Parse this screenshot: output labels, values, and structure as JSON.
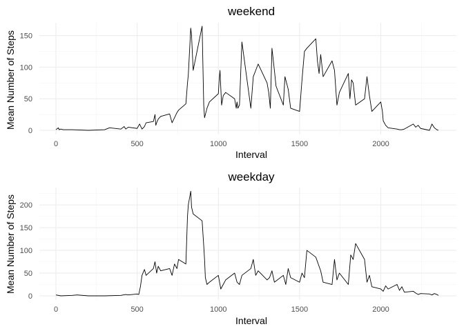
{
  "chart_data": [
    {
      "type": "line",
      "title": "weekend",
      "xlabel": "Interval",
      "ylabel": "Mean Number of Steps",
      "xlim": [
        0,
        2355
      ],
      "ylim": [
        0,
        166
      ],
      "xticks": [
        0,
        500,
        1000,
        1500,
        2000
      ],
      "yticks": [
        0,
        50,
        100,
        150
      ],
      "grid": true,
      "x": [
        0,
        15,
        20,
        30,
        45,
        100,
        200,
        300,
        330,
        400,
        420,
        430,
        445,
        500,
        515,
        530,
        545,
        555,
        600,
        610,
        615,
        620,
        630,
        645,
        700,
        715,
        730,
        745,
        755,
        800,
        810,
        815,
        830,
        835,
        845,
        900,
        910,
        915,
        930,
        945,
        1000,
        1005,
        1010,
        1020,
        1030,
        1045,
        1100,
        1110,
        1115,
        1120,
        1130,
        1145,
        1200,
        1215,
        1230,
        1245,
        1300,
        1310,
        1320,
        1330,
        1345,
        1355,
        1400,
        1410,
        1430,
        1445,
        1500,
        1515,
        1530,
        1545,
        1600,
        1610,
        1620,
        1630,
        1645,
        1700,
        1715,
        1730,
        1745,
        1800,
        1810,
        1820,
        1830,
        1845,
        1900,
        1915,
        1930,
        1945,
        2000,
        2010,
        2015,
        2030,
        2045,
        2100,
        2115,
        2130,
        2145,
        2200,
        2215,
        2230,
        2245,
        2300,
        2315,
        2330,
        2345,
        2355
      ],
      "y": [
        1,
        4,
        1,
        2,
        1,
        1,
        0,
        1,
        4,
        2,
        6,
        2,
        5,
        3,
        10,
        2,
        6,
        12,
        14,
        25,
        8,
        12,
        18,
        22,
        26,
        12,
        20,
        28,
        32,
        42,
        75,
        88,
        162,
        150,
        95,
        165,
        40,
        20,
        35,
        45,
        58,
        80,
        95,
        40,
        55,
        60,
        50,
        35,
        45,
        35,
        40,
        140,
        35,
        85,
        95,
        105,
        75,
        60,
        35,
        130,
        95,
        70,
        40,
        85,
        65,
        35,
        30,
        80,
        125,
        130,
        145,
        110,
        90,
        120,
        85,
        110,
        95,
        40,
        60,
        90,
        50,
        80,
        75,
        40,
        50,
        85,
        55,
        30,
        45,
        30,
        15,
        8,
        4,
        2,
        1,
        1,
        2,
        10,
        5,
        8,
        3,
        0,
        10,
        4,
        1,
        0
      ]
    },
    {
      "type": "line",
      "title": "weekday",
      "xlabel": "Interval",
      "ylabel": "Mean Number of Steps",
      "xlim": [
        0,
        2355
      ],
      "ylim": [
        0,
        232
      ],
      "xticks": [
        0,
        500,
        1000,
        1500,
        2000
      ],
      "yticks": [
        0,
        50,
        100,
        150,
        200
      ],
      "grid": true,
      "x": [
        0,
        30,
        100,
        130,
        200,
        300,
        400,
        430,
        445,
        500,
        510,
        520,
        530,
        545,
        555,
        600,
        610,
        620,
        630,
        645,
        700,
        715,
        730,
        745,
        755,
        800,
        810,
        815,
        830,
        835,
        845,
        900,
        910,
        915,
        920,
        930,
        945,
        1000,
        1015,
        1030,
        1045,
        1100,
        1115,
        1130,
        1145,
        1200,
        1215,
        1230,
        1245,
        1300,
        1315,
        1330,
        1345,
        1400,
        1415,
        1430,
        1445,
        1500,
        1515,
        1530,
        1545,
        1600,
        1615,
        1630,
        1645,
        1700,
        1715,
        1730,
        1745,
        1800,
        1815,
        1830,
        1845,
        1900,
        1915,
        1930,
        1945,
        2000,
        2015,
        2030,
        2045,
        2100,
        2115,
        2130,
        2145,
        2200,
        2215,
        2230,
        2245,
        2300,
        2315,
        2330,
        2345,
        2355
      ],
      "y": [
        2,
        0,
        1,
        2,
        0,
        0,
        1,
        3,
        2,
        4,
        3,
        20,
        45,
        58,
        45,
        60,
        75,
        50,
        65,
        55,
        60,
        45,
        70,
        60,
        80,
        70,
        175,
        200,
        230,
        195,
        180,
        165,
        110,
        80,
        40,
        25,
        30,
        45,
        15,
        25,
        35,
        50,
        30,
        25,
        45,
        60,
        80,
        45,
        55,
        35,
        40,
        55,
        30,
        45,
        25,
        60,
        40,
        30,
        50,
        40,
        100,
        85,
        70,
        55,
        30,
        25,
        80,
        35,
        50,
        25,
        90,
        80,
        115,
        80,
        30,
        45,
        20,
        15,
        10,
        22,
        15,
        25,
        12,
        20,
        8,
        10,
        6,
        3,
        5,
        4,
        2,
        5,
        3,
        1
      ]
    }
  ]
}
